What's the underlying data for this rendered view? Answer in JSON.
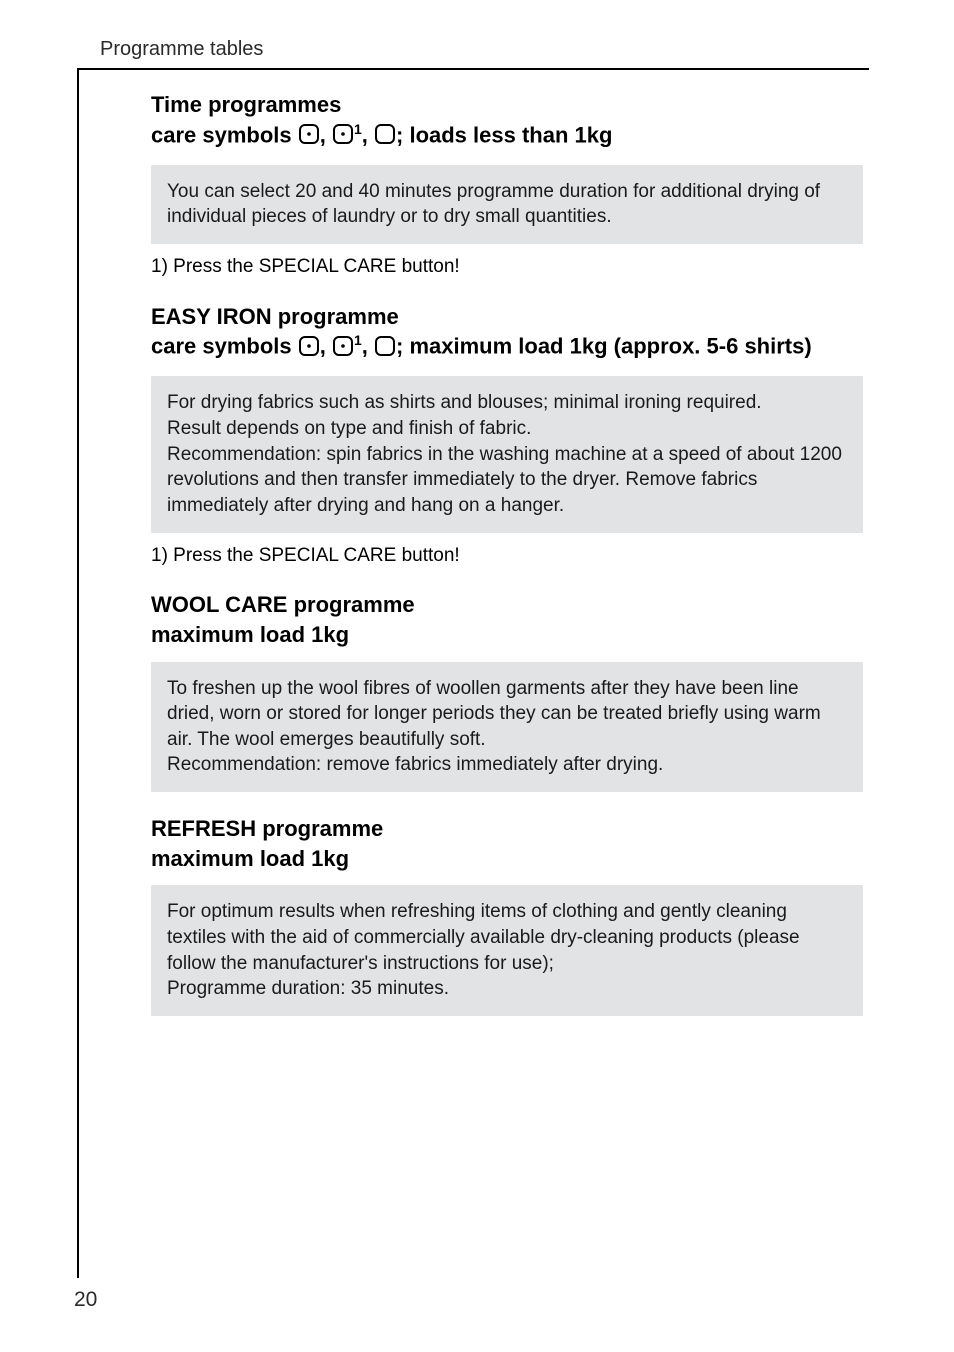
{
  "running_head": "Programme tables",
  "page_number": "20",
  "colors": {
    "text": "#000000",
    "box_bg": "#e2e3e5",
    "page_bg": "#ffffff",
    "symbol_stroke": "#000000"
  },
  "typography": {
    "title_fontsize_pt": 16,
    "body_fontsize_pt": 14,
    "running_head_fontsize_pt": 15,
    "page_number_fontsize_pt": 15
  },
  "symbols": {
    "box_dot1": {
      "type": "rounded-square-with-dots",
      "dots": 1
    },
    "box_dot1_sup": {
      "type": "rounded-square-with-dots",
      "dots": 1,
      "superscript": "1"
    },
    "box_empty": {
      "type": "rounded-square-with-dots",
      "dots": 0
    }
  },
  "sections": [
    {
      "title_line1": "Time programmes",
      "title_prefix": "care symbols ",
      "title_suffix": "; loads less than 1kg",
      "info": "You can select 20 and 40 minutes programme duration for additional drying of individual pieces of laundry or to dry small quantities.",
      "footnote": "1) Press the SPECIAL CARE button!"
    },
    {
      "title_line1": " EASY IRON programme",
      "title_prefix": "care symbols ",
      "title_suffix": "; maximum load 1kg (approx. 5-6 shirts)",
      "info": "For drying fabrics such as shirts and blouses; minimal ironing required.\nResult depends on type and finish of fabric.\nRecommendation: spin fabrics in the washing machine at a speed of about 1200 revolutions and then transfer immediately to the dryer. Remove fabrics immediately after drying and hang on a hanger.",
      "footnote": "1)  Press the SPECIAL CARE button!"
    },
    {
      "title_line1": " WOOL CARE programme",
      "title_line2": "maximum load 1kg",
      "info": "To freshen up the wool fibres of woollen garments after they have been line dried, worn or stored for longer periods they can be treated briefly using warm air. The wool emerges beautifully soft.\nRecommendation: remove fabrics immediately after drying."
    },
    {
      "title_line1": "REFRESH programme",
      "title_line2": "maximum load 1kg",
      "info": "For optimum results when refreshing items of clothing and gently cleaning textiles with the aid of commercially available dry-cleaning products (please follow the manufacturer's instructions for use);\nProgramme duration: 35 minutes."
    }
  ]
}
